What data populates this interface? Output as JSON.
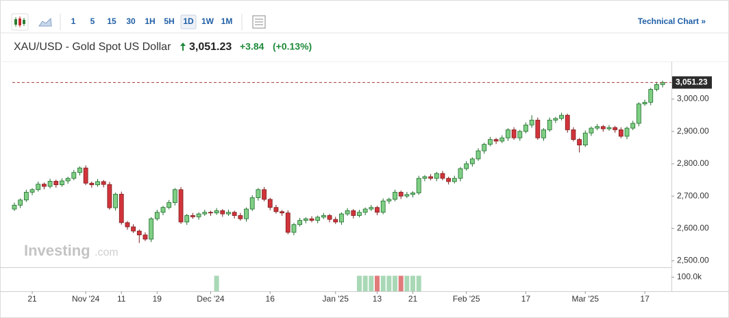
{
  "toolbar": {
    "intervals": [
      {
        "label": "1",
        "selected": false
      },
      {
        "label": "5",
        "selected": false
      },
      {
        "label": "15",
        "selected": false
      },
      {
        "label": "30",
        "selected": false
      },
      {
        "label": "1H",
        "selected": false
      },
      {
        "label": "5H",
        "selected": false
      },
      {
        "label": "1D",
        "selected": true
      },
      {
        "label": "1W",
        "selected": false
      },
      {
        "label": "1M",
        "selected": false
      }
    ],
    "link": "Technical Chart »"
  },
  "header": {
    "symbol": "XAU/USD - Gold Spot US Dollar",
    "change": "+3.84",
    "change_pct": "(+0.13%)"
  },
  "chart_data": {
    "type": "candlestick",
    "categories": [
      null,
      null,
      null,
      "21",
      null,
      null,
      null,
      null,
      null,
      null,
      null,
      null,
      "Nov '24",
      null,
      null,
      null,
      null,
      null,
      "11",
      null,
      null,
      null,
      null,
      null,
      "19",
      null,
      null,
      null,
      null,
      null,
      null,
      null,
      null,
      "Dec '24",
      null,
      null,
      null,
      null,
      null,
      null,
      null,
      null,
      null,
      "16",
      null,
      null,
      null,
      null,
      null,
      null,
      null,
      null,
      null,
      null,
      "Jan '25",
      null,
      null,
      null,
      null,
      null,
      null,
      "13",
      null,
      null,
      null,
      null,
      null,
      "21",
      null,
      null,
      null,
      null,
      null,
      null,
      null,
      null,
      "Feb '25",
      null,
      null,
      null,
      null,
      null,
      null,
      null,
      null,
      null,
      "17",
      null,
      null,
      null,
      null,
      null,
      null,
      null,
      null,
      null,
      "Mar '25",
      null,
      null,
      null,
      null,
      null,
      null,
      null,
      null,
      null,
      "17",
      null,
      null,
      null
    ],
    "open": [
      2660,
      2672,
      2688,
      2712,
      2720,
      2737,
      2730,
      2746,
      2735,
      2747,
      2755,
      2773,
      2787,
      2740,
      2735,
      2745,
      2736,
      2664,
      2706,
      2618,
      2605,
      2592,
      2580,
      2567,
      2630,
      2650,
      2665,
      2680,
      2720,
      2620,
      2640,
      2636,
      2645,
      2650,
      2648,
      2655,
      2645,
      2650,
      2640,
      2630,
      2660,
      2695,
      2720,
      2690,
      2665,
      2652,
      2648,
      2588,
      2612,
      2625,
      2630,
      2625,
      2635,
      2640,
      2628,
      2620,
      2645,
      2655,
      2640,
      2650,
      2660,
      2665,
      2650,
      2685,
      2690,
      2712,
      2700,
      2705,
      2710,
      2755,
      2760,
      2755,
      2770,
      2755,
      2745,
      2755,
      2785,
      2800,
      2815,
      2840,
      2860,
      2875,
      2870,
      2880,
      2905,
      2880,
      2900,
      2920,
      2935,
      2880,
      2905,
      2935,
      2940,
      2950,
      2905,
      2875,
      2858,
      2895,
      2910,
      2915,
      2908,
      2912,
      2905,
      2885,
      2910,
      2925,
      2985,
      2990,
      3030,
      3045
    ],
    "high": [
      2680,
      2693,
      2720,
      2725,
      2745,
      2742,
      2754,
      2751,
      2755,
      2760,
      2781,
      2792,
      2795,
      2745,
      2753,
      2750,
      2744,
      2711,
      2714,
      2623,
      2613,
      2597,
      2588,
      2635,
      2658,
      2670,
      2688,
      2725,
      2728,
      2645,
      2648,
      2650,
      2658,
      2655,
      2663,
      2660,
      2658,
      2655,
      2648,
      2665,
      2703,
      2725,
      2728,
      2695,
      2673,
      2657,
      2656,
      2617,
      2633,
      2635,
      2638,
      2640,
      2648,
      2645,
      2636,
      2650,
      2663,
      2660,
      2658,
      2665,
      2673,
      2670,
      2693,
      2695,
      2720,
      2717,
      2713,
      2715,
      2763,
      2765,
      2768,
      2775,
      2778,
      2760,
      2763,
      2790,
      2808,
      2820,
      2848,
      2865,
      2883,
      2880,
      2888,
      2910,
      2913,
      2905,
      2928,
      2950,
      2943,
      2910,
      2943,
      2945,
      2958,
      2955,
      2913,
      2880,
      2903,
      2915,
      2923,
      2920,
      2920,
      2917,
      2913,
      2915,
      2933,
      2990,
      2998,
      3035,
      3053,
      3057
    ],
    "low": [
      2654,
      2663,
      2682,
      2703,
      2714,
      2721,
      2724,
      2726,
      2729,
      2738,
      2749,
      2764,
      2734,
      2726,
      2729,
      2727,
      2658,
      2655,
      2612,
      2596,
      2586,
      2555,
      2561,
      2558,
      2624,
      2641,
      2659,
      2671,
      2614,
      2611,
      2630,
      2627,
      2639,
      2639,
      2642,
      2636,
      2639,
      2631,
      2624,
      2621,
      2654,
      2686,
      2684,
      2656,
      2646,
      2639,
      2582,
      2579,
      2606,
      2616,
      2619,
      2616,
      2629,
      2619,
      2614,
      2611,
      2639,
      2631,
      2634,
      2641,
      2654,
      2641,
      2644,
      2676,
      2684,
      2691,
      2694,
      2696,
      2704,
      2746,
      2749,
      2746,
      2749,
      2736,
      2739,
      2746,
      2779,
      2791,
      2809,
      2831,
      2854,
      2861,
      2864,
      2871,
      2874,
      2871,
      2894,
      2911,
      2874,
      2871,
      2899,
      2926,
      2934,
      2896,
      2869,
      2835,
      2852,
      2886,
      2904,
      2899,
      2902,
      2896,
      2879,
      2876,
      2904,
      2916,
      2979,
      2981,
      3024,
      3036
    ],
    "close": [
      2672,
      2688,
      2712,
      2720,
      2737,
      2730,
      2746,
      2735,
      2747,
      2755,
      2773,
      2787,
      2740,
      2735,
      2745,
      2736,
      2664,
      2706,
      2618,
      2605,
      2592,
      2580,
      2567,
      2630,
      2650,
      2665,
      2680,
      2720,
      2620,
      2640,
      2636,
      2645,
      2650,
      2648,
      2655,
      2645,
      2650,
      2640,
      2630,
      2660,
      2695,
      2720,
      2690,
      2665,
      2652,
      2648,
      2588,
      2612,
      2625,
      2630,
      2625,
      2635,
      2640,
      2628,
      2620,
      2645,
      2655,
      2640,
      2650,
      2660,
      2665,
      2650,
      2685,
      2690,
      2712,
      2700,
      2705,
      2710,
      2755,
      2760,
      2755,
      2770,
      2755,
      2745,
      2755,
      2785,
      2800,
      2815,
      2840,
      2860,
      2875,
      2870,
      2880,
      2905,
      2880,
      2900,
      2920,
      2935,
      2880,
      2905,
      2935,
      2940,
      2950,
      2905,
      2875,
      2858,
      2895,
      2910,
      2915,
      2908,
      2912,
      2905,
      2885,
      2910,
      2925,
      2985,
      2990,
      3030,
      3045,
      3051.23
    ],
    "volume": [
      null,
      null,
      null,
      null,
      null,
      null,
      null,
      null,
      null,
      null,
      null,
      null,
      null,
      null,
      null,
      null,
      null,
      null,
      null,
      null,
      null,
      null,
      null,
      null,
      null,
      null,
      null,
      null,
      null,
      null,
      null,
      null,
      null,
      null,
      110000,
      null,
      null,
      null,
      null,
      null,
      null,
      null,
      null,
      null,
      null,
      null,
      null,
      null,
      null,
      null,
      null,
      null,
      null,
      null,
      null,
      null,
      null,
      null,
      110000,
      110000,
      110000,
      110000,
      110000,
      110000,
      110000,
      110000,
      110000,
      110000,
      110000,
      null,
      null,
      null,
      null,
      null,
      null,
      null,
      null,
      null,
      null,
      null,
      null,
      null,
      null,
      null,
      null,
      null,
      null,
      null,
      null,
      null,
      null,
      null,
      null,
      null,
      null,
      null,
      null,
      null,
      null,
      null,
      null,
      null,
      null,
      null,
      null,
      null,
      null,
      null,
      null,
      null
    ],
    "ylim": [
      2480,
      3105
    ],
    "yticks": [
      {
        "value": 2500,
        "label": "2,500.00"
      },
      {
        "value": 2600,
        "label": "2,600.00"
      },
      {
        "value": 2700,
        "label": "2,700.00"
      },
      {
        "value": 2800,
        "label": "2,800.00"
      },
      {
        "value": 2900,
        "label": "2,900.00"
      },
      {
        "value": 3000,
        "label": "3,000.00"
      }
    ],
    "last_price": {
      "value": 3051.23,
      "label": "3,051.23"
    },
    "volume_ylim": [
      0,
      170000
    ],
    "volume_yticks": [
      {
        "value": 100000,
        "label": "100.0k"
      }
    ],
    "colors": {
      "up": "#7fcf85",
      "up_edge": "#1e6b2a",
      "down": "#d2343b",
      "down_edge": "#7a1c1c",
      "volume_up": "#a9d8b6",
      "volume_down": "#e07b7b",
      "last_line": "#a33b3b"
    },
    "watermark": {
      "brand": "Investing",
      "suffix": ".com"
    }
  }
}
